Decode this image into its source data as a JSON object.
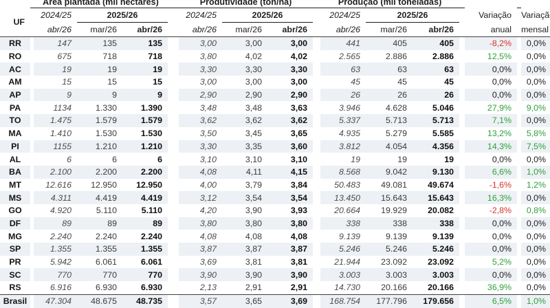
{
  "table": {
    "groups": [
      {
        "title": "Área plantada (mil hectares)"
      },
      {
        "title": "Produtividade (ton/ha)"
      },
      {
        "title": "Produção (mil toneladas)"
      }
    ],
    "header": {
      "uf": "UF",
      "season_prev": "2024/25",
      "season_curr": "2025/26",
      "sub_prev": "abr/26",
      "sub_mar": "mar/26",
      "sub_abr": "abr/26",
      "var_annual_l1": "Variação",
      "var_annual_l2": "anual",
      "var_monthly_l1": "Variação",
      "var_monthly_l2": "mensal"
    },
    "rows": [
      {
        "uf": "RR",
        "area": [
          "147",
          "135",
          "135"
        ],
        "yield": [
          "3,00",
          "3,00",
          "3,00"
        ],
        "production": [
          "441",
          "405",
          "405"
        ],
        "var_annual": "-8,2%",
        "var_annual_tone": "neg",
        "var_monthly": "0,0%",
        "var_monthly_tone": "zero"
      },
      {
        "uf": "RO",
        "area": [
          "675",
          "718",
          "718"
        ],
        "yield": [
          "3,80",
          "4,02",
          "4,02"
        ],
        "production": [
          "2.565",
          "2.886",
          "2.886"
        ],
        "var_annual": "12,5%",
        "var_annual_tone": "pos",
        "var_monthly": "0,0%",
        "var_monthly_tone": "zero"
      },
      {
        "uf": "AC",
        "area": [
          "19",
          "19",
          "19"
        ],
        "yield": [
          "3,30",
          "3,30",
          "3,30"
        ],
        "production": [
          "63",
          "63",
          "63"
        ],
        "var_annual": "0,0%",
        "var_annual_tone": "zero",
        "var_monthly": "0,0%",
        "var_monthly_tone": "zero"
      },
      {
        "uf": "AM",
        "area": [
          "15",
          "15",
          "15"
        ],
        "yield": [
          "3,00",
          "3,00",
          "3,00"
        ],
        "production": [
          "45",
          "45",
          "45"
        ],
        "var_annual": "0,0%",
        "var_annual_tone": "zero",
        "var_monthly": "0,0%",
        "var_monthly_tone": "zero"
      },
      {
        "uf": "AP",
        "area": [
          "9",
          "9",
          "9"
        ],
        "yield": [
          "2,90",
          "2,90",
          "2,90"
        ],
        "production": [
          "26",
          "26",
          "26"
        ],
        "var_annual": "0,0%",
        "var_annual_tone": "zero",
        "var_monthly": "0,0%",
        "var_monthly_tone": "zero"
      },
      {
        "uf": "PA",
        "area": [
          "1134",
          "1.330",
          "1.390"
        ],
        "yield": [
          "3,48",
          "3,48",
          "3,63"
        ],
        "production": [
          "3.946",
          "4.628",
          "5.046"
        ],
        "var_annual": "27,9%",
        "var_annual_tone": "pos",
        "var_monthly": "9,0%",
        "var_monthly_tone": "pos"
      },
      {
        "uf": "TO",
        "area": [
          "1.475",
          "1.579",
          "1.579"
        ],
        "yield": [
          "3,62",
          "3,62",
          "3,62"
        ],
        "production": [
          "5.337",
          "5.713",
          "5.713"
        ],
        "var_annual": "7,1%",
        "var_annual_tone": "pos",
        "var_monthly": "0,0%",
        "var_monthly_tone": "zero"
      },
      {
        "uf": "MA",
        "area": [
          "1.410",
          "1.530",
          "1.530"
        ],
        "yield": [
          "3,50",
          "3,45",
          "3,65"
        ],
        "production": [
          "4.935",
          "5.279",
          "5.585"
        ],
        "var_annual": "13,2%",
        "var_annual_tone": "pos",
        "var_monthly": "5,8%",
        "var_monthly_tone": "pos"
      },
      {
        "uf": "PI",
        "area": [
          "1155",
          "1.210",
          "1.210"
        ],
        "yield": [
          "3,30",
          "3,35",
          "3,60"
        ],
        "production": [
          "3.812",
          "4.054",
          "4.356"
        ],
        "var_annual": "14,3%",
        "var_annual_tone": "pos",
        "var_monthly": "7,5%",
        "var_monthly_tone": "pos"
      },
      {
        "uf": "AL",
        "area": [
          "6",
          "6",
          "6"
        ],
        "yield": [
          "3,10",
          "3,10",
          "3,10"
        ],
        "production": [
          "19",
          "19",
          "19"
        ],
        "var_annual": "0,0%",
        "var_annual_tone": "zero",
        "var_monthly": "0,0%",
        "var_monthly_tone": "zero"
      },
      {
        "uf": "BA",
        "area": [
          "2.100",
          "2.200",
          "2.200"
        ],
        "yield": [
          "4,08",
          "4,11",
          "4,15"
        ],
        "production": [
          "8.568",
          "9.042",
          "9.130"
        ],
        "var_annual": "6,6%",
        "var_annual_tone": "pos",
        "var_monthly": "1,0%",
        "var_monthly_tone": "pos"
      },
      {
        "uf": "MT",
        "area": [
          "12.616",
          "12.950",
          "12.950"
        ],
        "yield": [
          "4,00",
          "3,79",
          "3,84"
        ],
        "production": [
          "50.483",
          "49.081",
          "49.674"
        ],
        "var_annual": "-1,6%",
        "var_annual_tone": "neg",
        "var_monthly": "1,2%",
        "var_monthly_tone": "pos"
      },
      {
        "uf": "MS",
        "area": [
          "4.311",
          "4.419",
          "4.419"
        ],
        "yield": [
          "3,12",
          "3,54",
          "3,54"
        ],
        "production": [
          "13.450",
          "15.643",
          "15.643"
        ],
        "var_annual": "16,3%",
        "var_annual_tone": "pos",
        "var_monthly": "0,0%",
        "var_monthly_tone": "zero"
      },
      {
        "uf": "GO",
        "area": [
          "4.920",
          "5.110",
          "5.110"
        ],
        "yield": [
          "4,20",
          "3,90",
          "3,93"
        ],
        "production": [
          "20.664",
          "19.929",
          "20.082"
        ],
        "var_annual": "-2,8%",
        "var_annual_tone": "neg",
        "var_monthly": "0,8%",
        "var_monthly_tone": "pos"
      },
      {
        "uf": "DF",
        "area": [
          "89",
          "89",
          "89"
        ],
        "yield": [
          "3,80",
          "3,80",
          "3,80"
        ],
        "production": [
          "338",
          "338",
          "338"
        ],
        "var_annual": "0,0%",
        "var_annual_tone": "zero",
        "var_monthly": "0,0%",
        "var_monthly_tone": "zero"
      },
      {
        "uf": "MG",
        "area": [
          "2.240",
          "2.240",
          "2.240"
        ],
        "yield": [
          "4,08",
          "4,08",
          "4,08"
        ],
        "production": [
          "9.139",
          "9.139",
          "9.139"
        ],
        "var_annual": "0,0%",
        "var_annual_tone": "zero",
        "var_monthly": "0,0%",
        "var_monthly_tone": "zero"
      },
      {
        "uf": "SP",
        "area": [
          "1.355",
          "1.355",
          "1.355"
        ],
        "yield": [
          "3,87",
          "3,87",
          "3,87"
        ],
        "production": [
          "5.246",
          "5.246",
          "5.246"
        ],
        "var_annual": "0,0%",
        "var_annual_tone": "zero",
        "var_monthly": "0,0%",
        "var_monthly_tone": "zero"
      },
      {
        "uf": "PR",
        "area": [
          "5.942",
          "6.061",
          "6.061"
        ],
        "yield": [
          "3,69",
          "3,81",
          "3,81"
        ],
        "production": [
          "21.944",
          "23.092",
          "23.092"
        ],
        "var_annual": "5,2%",
        "var_annual_tone": "pos",
        "var_monthly": "0,0%",
        "var_monthly_tone": "zero"
      },
      {
        "uf": "SC",
        "area": [
          "770",
          "770",
          "770"
        ],
        "yield": [
          "3,90",
          "3,90",
          "3,90"
        ],
        "production": [
          "3.003",
          "3.003",
          "3.003"
        ],
        "var_annual": "0,0%",
        "var_annual_tone": "zero",
        "var_monthly": "0,0%",
        "var_monthly_tone": "zero"
      },
      {
        "uf": "RS",
        "area": [
          "6.916",
          "6.930",
          "6.930"
        ],
        "yield": [
          "2,13",
          "2,91",
          "2,91"
        ],
        "production": [
          "14.730",
          "20.166",
          "20.166"
        ],
        "var_annual": "36,9%",
        "var_annual_tone": "pos",
        "var_monthly": "0,0%",
        "var_monthly_tone": "zero"
      }
    ],
    "total_row": {
      "uf": "Brasil",
      "area": [
        "47.304",
        "48.675",
        "48.735"
      ],
      "yield": [
        "3,57",
        "3,65",
        "3,69"
      ],
      "production": [
        "168.754",
        "177.796",
        "179.656"
      ],
      "var_annual": "6,5%",
      "var_annual_tone": "pos",
      "var_monthly": "1,0%",
      "var_monthly_tone": "pos"
    }
  },
  "colors": {
    "stripe": "#edf1f5",
    "positive": "#2ea03a",
    "negative": "#d93228",
    "text": "#1e1e1e"
  }
}
